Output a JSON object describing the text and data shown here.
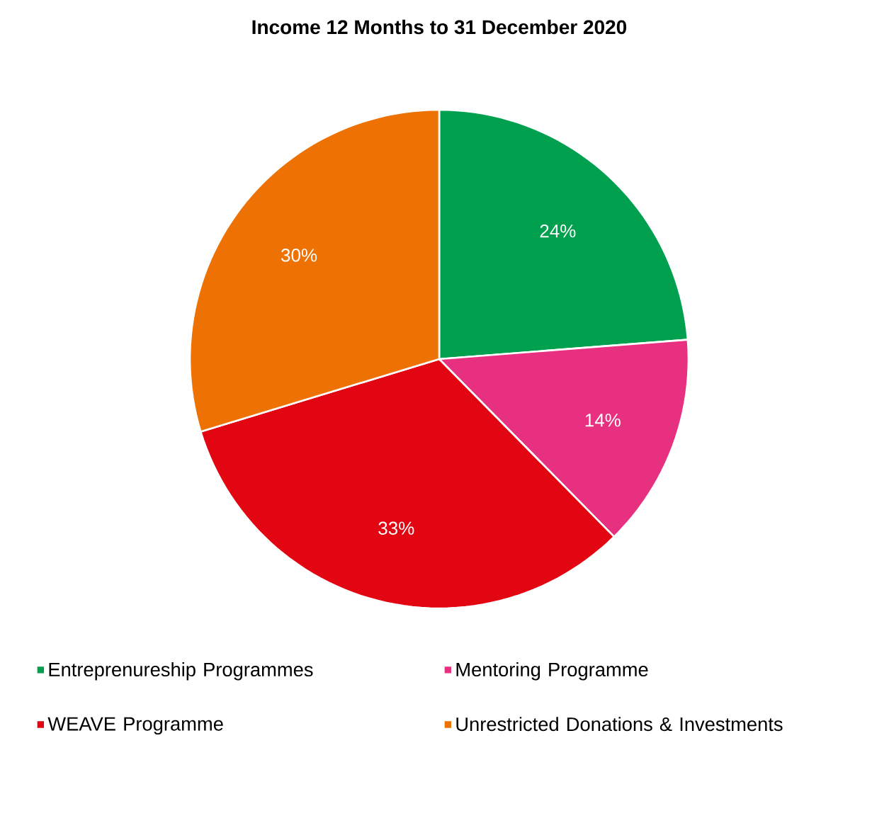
{
  "chart_data": {
    "type": "pie",
    "title": "Income 12 Months to 31 December 2020",
    "categories": [
      "Entreprenureship Programmes",
      "Mentoring Programme",
      "WEAVE Programme",
      "Unrestricted Donations & Investments"
    ],
    "values": [
      24,
      14,
      33,
      30
    ],
    "value_labels": [
      "24%",
      "14%",
      "33%",
      "30%"
    ],
    "colors": [
      "#00a04e",
      "#e83081",
      "#e20613",
      "#ee7203"
    ],
    "legend": "bottom"
  }
}
